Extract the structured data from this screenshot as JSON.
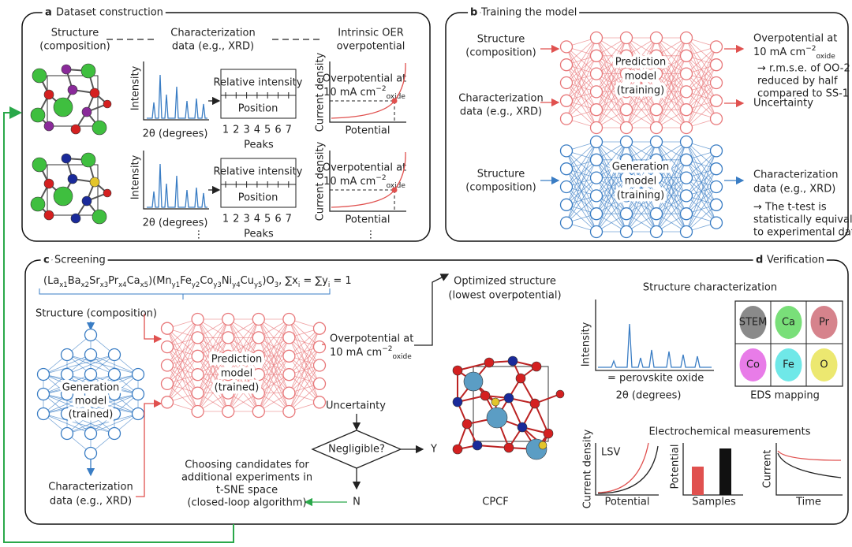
{
  "panel_a": {
    "letter": "a",
    "title": "Dataset construction",
    "structure": [
      "Structure",
      "(composition)"
    ],
    "characterization": [
      "Characterization",
      "data (e.g., XRD)"
    ],
    "overpotential_header": [
      "Intrinsic OER",
      "overpotential"
    ],
    "xrd_ylabel": "Intensity",
    "xrd_xlabel": "2θ (degrees)",
    "table_top": "Relative intensity",
    "table_bottom": "Position",
    "peaks": [
      1,
      2,
      3,
      4,
      5,
      6,
      7
    ],
    "peaks_label": "Peaks",
    "cd_ylabel": "Current density",
    "overpotential": {
      "line1": "Overpotential at",
      "main": "10 mA cm",
      "sup": "−2",
      "sub": "oxide"
    },
    "cd_xlabel": "Potential",
    "more": "⋮"
  },
  "panel_b": {
    "letter": "b",
    "title": "Training the model",
    "structure": [
      "Structure",
      "(composition)"
    ],
    "characterization": [
      "Characterization",
      "data (e.g., XRD)"
    ],
    "prediction_model": [
      "Prediction",
      "model",
      "(training)"
    ],
    "overpotential": {
      "line1": "Overpotential at",
      "main": "10 mA cm",
      "sup": "−2",
      "sub": "oxide"
    },
    "prediction_note": [
      "→ r.m.s.e. of OO-2",
      "reduced by half",
      "compared to SS-1"
    ],
    "uncertainty": "Uncertainty",
    "generation_model": [
      "Generation",
      "model",
      "(training)"
    ],
    "generation_note": [
      "→ The t-test is",
      "statistically equivalent",
      "to experimental data"
    ]
  },
  "panel_c": {
    "letter": "c",
    "title": "Screening",
    "formula": [
      {
        "t": "(La",
        "s": "x1"
      },
      {
        "t": "Ba",
        "s": "x2"
      },
      {
        "t": "Sr",
        "s": "x3"
      },
      {
        "t": "Pr",
        "s": "x4"
      },
      {
        "t": "Ca",
        "s": "x5"
      },
      {
        "t": ")(Mn",
        "s": "y1"
      },
      {
        "t": "Fe",
        "s": "y2"
      },
      {
        "t": "Co",
        "s": "y3"
      },
      {
        "t": "Ni",
        "s": "y4"
      },
      {
        "t": "Cu",
        "s": "y5"
      },
      {
        "t": ")O",
        "s": "3"
      },
      {
        "t": ",  ∑x",
        "s": "i"
      },
      {
        "t": " = ∑y",
        "s": "i"
      },
      {
        "t": " = 1"
      }
    ],
    "structure": "Structure (composition)",
    "generation_model": [
      "Generation",
      "model",
      "(trained)"
    ],
    "prediction_model": [
      "Prediction",
      "model",
      "(trained)"
    ],
    "overpotential": {
      "line1": "Overpotential at",
      "main": "10 mA cm",
      "sup": "−2",
      "sub": "oxide"
    },
    "uncertainty": "Uncertainty",
    "decision": "Negligible?",
    "yes": "Y",
    "no": "N",
    "candidates": [
      "Choosing candidates for",
      "additional experiments in",
      "t-SNE space",
      "(closed-loop algorithm)"
    ],
    "characterization": [
      "Characterization",
      "data (e.g., XRD)"
    ],
    "optimized": [
      "Optimized structure",
      "(lowest overpotential)"
    ],
    "catalyst": "CPCF"
  },
  "panel_d": {
    "letter": "d",
    "title": "Verification",
    "structure_title": "Structure characterization",
    "xrd_ylabel": "Intensity",
    "xrd_xlabel": "2θ (degrees)",
    "xrd_legend": "= perovskite oxide",
    "eds": [
      "STEM",
      "Ca",
      "Pr",
      "Co",
      "Fe",
      "O"
    ],
    "eds_label": "EDS mapping",
    "electrochem_title": "Electrochemical measurements",
    "lsv": "LSV",
    "lsv_ylabel": "Current density",
    "lsv_xlabel": "Potential",
    "bar_ylabel": "Potential",
    "bar_xlabel": "Samples",
    "ct_ylabel": "Current",
    "ct_xlabel": "Time"
  }
}
